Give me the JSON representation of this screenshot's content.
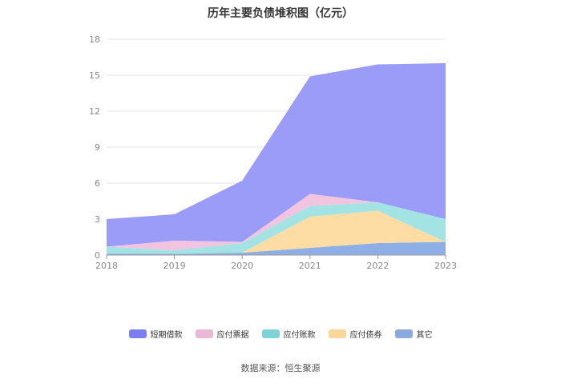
{
  "chart_data": {
    "type": "area",
    "stacked": true,
    "title": "历年主要负债堆积图（亿元）",
    "categories": [
      "2018",
      "2019",
      "2020",
      "2021",
      "2022",
      "2023"
    ],
    "ylim": [
      0,
      18
    ],
    "yticks": [
      0,
      3,
      6,
      9,
      12,
      15,
      18
    ],
    "grid": true,
    "legend_position": "bottom",
    "series": [
      {
        "name": "其它",
        "color": "#8eaee6",
        "values": [
          0.1,
          0.1,
          0.2,
          0.6,
          1.0,
          1.1
        ]
      },
      {
        "name": "应付债券",
        "color": "#fddda4",
        "values": [
          0.0,
          0.0,
          0.0,
          2.6,
          2.7,
          0.0
        ]
      },
      {
        "name": "应付账款",
        "color": "#a4e3e3",
        "values": [
          0.6,
          0.3,
          0.8,
          0.9,
          0.7,
          1.9
        ]
      },
      {
        "name": "应付票据",
        "color": "#f2c4e0",
        "values": [
          0.0,
          0.8,
          0.1,
          1.0,
          0.0,
          0.0
        ]
      },
      {
        "name": "短期借款",
        "color": "#9a9cf8",
        "values": [
          2.3,
          2.2,
          5.1,
          9.8,
          11.5,
          13.0
        ]
      }
    ],
    "legend_order": [
      "短期借款",
      "应付票据",
      "应付账款",
      "应付债券",
      "其它"
    ],
    "legend_colors": {
      "短期借款": "#7b7ef2",
      "应付票据": "#ebb8d8",
      "应付账款": "#7fd3d6",
      "应付债券": "#fdd69a",
      "其它": "#8aa9dd"
    }
  },
  "source_text": "数据来源：恒生聚源"
}
